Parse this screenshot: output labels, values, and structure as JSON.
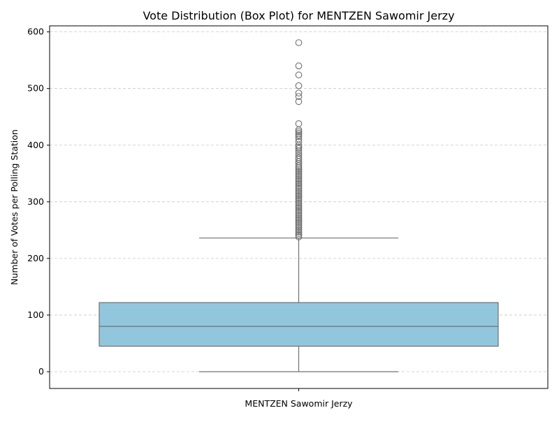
{
  "chart_data": {
    "type": "box",
    "title": "Vote Distribution (Box Plot) for MENTZEN Sawomir Jerzy",
    "xlabel": "",
    "ylabel": "Number of Votes per Polling Station",
    "categories": [
      "MENTZEN Sawomir Jerzy"
    ],
    "ylim": [
      -30,
      612
    ],
    "yticks": [
      0,
      100,
      200,
      300,
      400,
      500,
      600
    ],
    "grid": "y-dashed",
    "box": {
      "whisker_low": 0,
      "q1": 45,
      "median": 80,
      "q3": 122,
      "whisker_high": 236,
      "fill": "#92c6dd",
      "line": "#707070"
    },
    "outliers": [
      581,
      540,
      524,
      505,
      492,
      486,
      477,
      438,
      427,
      424,
      421,
      418,
      415,
      411,
      406,
      400,
      397,
      394,
      390,
      386,
      382,
      378,
      375,
      371,
      368,
      364,
      361,
      358,
      355,
      352,
      349,
      346,
      343,
      340,
      337,
      334,
      331,
      328,
      325,
      322,
      319,
      316,
      313,
      310,
      307,
      304,
      301,
      298,
      295,
      292,
      289,
      286,
      283,
      280,
      277,
      274,
      271,
      268,
      265,
      262,
      259,
      256,
      253,
      250,
      247,
      244,
      241,
      238
    ]
  }
}
